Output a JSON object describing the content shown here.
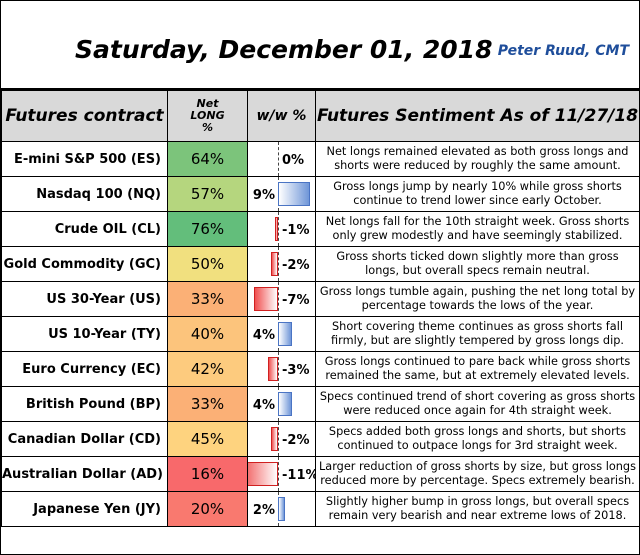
{
  "header": {
    "title": "Saturday, December 01, 2018",
    "author": "Peter Ruud, CMT"
  },
  "columns": {
    "contract": "Futures contract",
    "net_long_line1": "Net",
    "net_long_line2": "LONG",
    "net_long_line3": "%",
    "ww": "w/w %",
    "sentiment": "Futures Sentiment As of 11/27/18"
  },
  "rows": [
    {
      "contract": "E-mini S&P 500 (ES)",
      "net_long": "64%",
      "net_long_value": 64,
      "net_color": "#7cc47b",
      "ww": "0%",
      "ww_value": 0,
      "sentiment": "Net longs remained elevated as both gross longs and shorts were reduced by roughly the same amount."
    },
    {
      "contract": "Nasdaq 100 (NQ)",
      "net_long": "57%",
      "net_long_value": 57,
      "net_color": "#b5d67e",
      "ww": "9%",
      "ww_value": 9,
      "sentiment": "Gross longs jump by nearly 10% while gross shorts continue to trend lower since early October."
    },
    {
      "contract": "Crude OIL (CL)",
      "net_long": "76%",
      "net_long_value": 76,
      "net_color": "#63be7b",
      "ww": "-1%",
      "ww_value": -1,
      "sentiment": "Net longs fall for the 10th straight week. Gross shorts only grew modestly and have seemingly stabilized."
    },
    {
      "contract": "Gold Commodity (GC)",
      "net_long": "50%",
      "net_long_value": 50,
      "net_color": "#f1e07f",
      "ww": "-2%",
      "ww_value": -2,
      "sentiment": "Gross shorts ticked down slightly more than gross longs, but overall specs remain neutral."
    },
    {
      "contract": "US 30-Year (US)",
      "net_long": "33%",
      "net_long_value": 33,
      "net_color": "#fbb076",
      "ww": "-7%",
      "ww_value": -7,
      "sentiment": "Gross longs tumble again, pushing the net long total by percentage towards the lows of the year."
    },
    {
      "contract": "US 10-Year (TY)",
      "net_long": "40%",
      "net_long_value": 40,
      "net_color": "#fcc47c",
      "ww": "4%",
      "ww_value": 4,
      "sentiment": "Short covering theme continues as gross shorts fall firmly, but are slightly tempered by gross longs dip."
    },
    {
      "contract": "Euro Currency (EC)",
      "net_long": "42%",
      "net_long_value": 42,
      "net_color": "#fdcb7e",
      "ww": "-3%",
      "ww_value": -3,
      "sentiment": "Gross longs continued to pare back while gross shorts remained the same, but at extremely elevated levels."
    },
    {
      "contract": "British Pound (BP)",
      "net_long": "33%",
      "net_long_value": 33,
      "net_color": "#fbb076",
      "ww": "4%",
      "ww_value": 4,
      "sentiment": "Specs continued trend of short covering as gross shorts were reduced once again for 4th straight week."
    },
    {
      "contract": "Canadian Dollar (CD)",
      "net_long": "45%",
      "net_long_value": 45,
      "net_color": "#fed37f",
      "ww": "-2%",
      "ww_value": -2,
      "sentiment": "Specs added both gross longs and shorts, but shorts continued to outpace longs for 3rd straight week."
    },
    {
      "contract": "Australian Dollar (AD)",
      "net_long": "16%",
      "net_long_value": 16,
      "net_color": "#f8696b",
      "ww": "-11%",
      "ww_value": -11,
      "sentiment": "Larger reduction of gross shorts by size, but gross longs reduced more by percentage. Specs extremely bearish."
    },
    {
      "contract": "Japanese Yen (JY)",
      "net_long": "20%",
      "net_long_value": 20,
      "net_color": "#f9796f",
      "ww": "2%",
      "ww_value": 2,
      "sentiment": "Slightly higher bump in gross longs, but overall specs remain very bearish and near extreme lows of 2018."
    }
  ]
}
